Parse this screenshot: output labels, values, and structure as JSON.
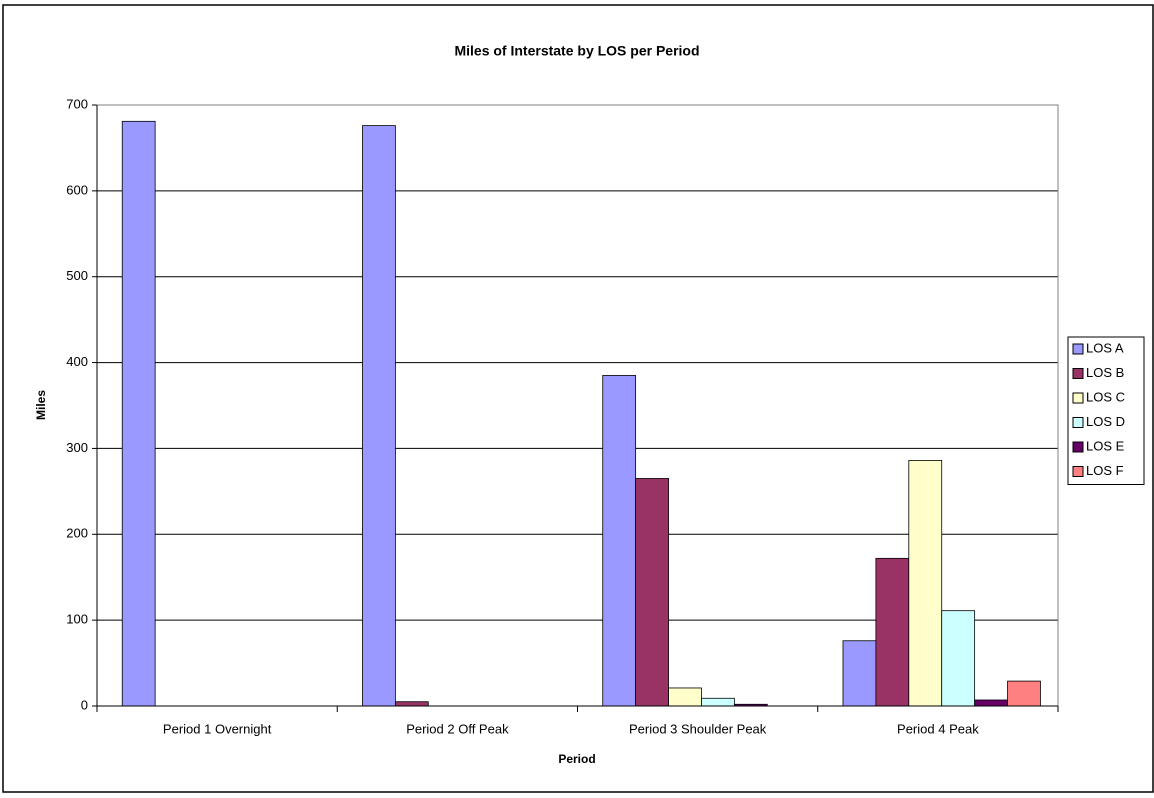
{
  "chart_data": {
    "type": "bar",
    "title": "Miles of Interstate by LOS per Period",
    "x_label": "Period",
    "y_label": "Miles",
    "categories": [
      "Period 1 Overnight",
      "Period 2 Off Peak",
      "Period 3 Shoulder Peak",
      "Period 4 Peak"
    ],
    "series": [
      {
        "name": "LOS A",
        "color": "#9999ff",
        "values": [
          681,
          676,
          385,
          76
        ]
      },
      {
        "name": "LOS B",
        "color": "#993366",
        "values": [
          0,
          5,
          265,
          172
        ]
      },
      {
        "name": "LOS C",
        "color": "#ffffcc",
        "values": [
          0,
          0,
          21,
          286
        ]
      },
      {
        "name": "LOS D",
        "color": "#ccffff",
        "values": [
          0,
          0,
          9,
          111
        ]
      },
      {
        "name": "LOS E",
        "color": "#660066",
        "values": [
          0,
          0,
          2,
          7
        ]
      },
      {
        "name": "LOS F",
        "color": "#ff8080",
        "values": [
          0,
          0,
          0,
          29
        ]
      }
    ],
    "ylim": [
      0,
      700
    ],
    "yticks": [
      0,
      100,
      200,
      300,
      400,
      500,
      600,
      700
    ],
    "grid": true,
    "legend": "right"
  }
}
